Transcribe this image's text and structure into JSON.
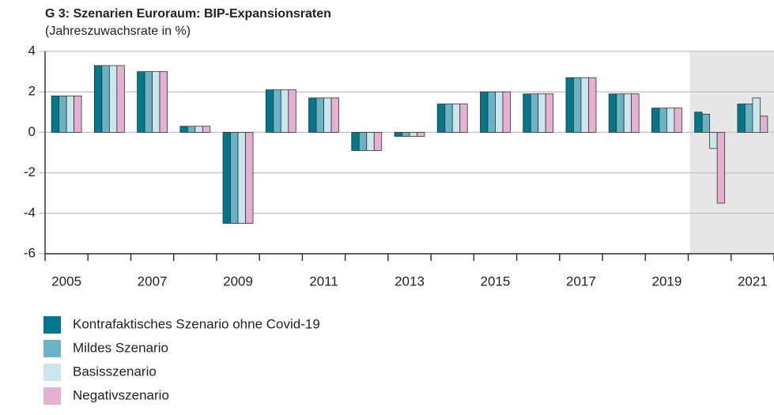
{
  "chart_data": {
    "type": "bar",
    "title": "G 3: Szenarien Euroraum: BIP-Expansionsraten",
    "subtitle": "(Jahreszuwachsrate in %)",
    "categories": [
      "2005",
      null,
      "2007",
      null,
      "2009",
      null,
      "2011",
      null,
      "2013",
      null,
      "2015",
      null,
      "2017",
      null,
      "2019",
      null,
      "2021"
    ],
    "series": [
      {
        "name": "Kontrafaktisches Szenario ohne Covid-19",
        "color": "#00778a",
        "values": [
          1.8,
          3.3,
          3.0,
          0.3,
          -4.5,
          2.1,
          1.7,
          -0.9,
          -0.2,
          1.4,
          2.0,
          1.9,
          2.7,
          1.9,
          1.2,
          1.0,
          1.4
        ]
      },
      {
        "name": "Mildes Szenario",
        "color": "#6bb3c4",
        "values": [
          1.8,
          3.3,
          3.0,
          0.3,
          -4.5,
          2.1,
          1.7,
          -0.9,
          -0.2,
          1.4,
          2.0,
          1.9,
          2.7,
          1.9,
          1.2,
          0.9,
          1.4
        ]
      },
      {
        "name": "Basisszenario",
        "color": "#c9e6ec",
        "values": [
          1.8,
          3.3,
          3.0,
          0.3,
          -4.5,
          2.1,
          1.7,
          -0.9,
          -0.2,
          1.4,
          2.0,
          1.9,
          2.7,
          1.9,
          1.2,
          -0.8,
          1.7
        ]
      },
      {
        "name": "Negativszenario",
        "color": "#e5b0d2",
        "values": [
          1.8,
          3.3,
          3.0,
          0.3,
          -4.5,
          2.1,
          1.7,
          -0.9,
          -0.2,
          1.4,
          2.0,
          1.9,
          2.7,
          1.9,
          1.2,
          -3.5,
          0.8
        ]
      }
    ],
    "ylim": [
      -6,
      4
    ],
    "yticks": [
      -6,
      -4,
      -2,
      0,
      2,
      4
    ],
    "grid": true
  }
}
